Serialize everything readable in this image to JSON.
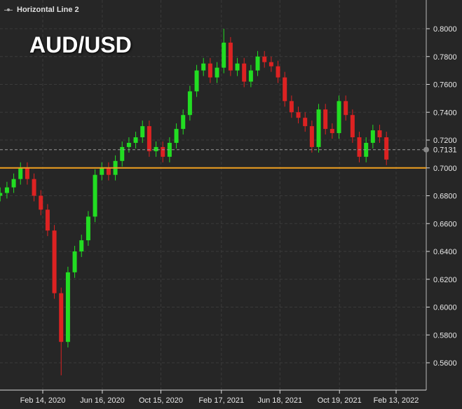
{
  "legend": {
    "label": "Horizontal Line 2",
    "icon": "horizontal-line-icon"
  },
  "chart_data": {
    "type": "candlestick",
    "title": "AUD/USD",
    "x": [
      "2019-11-18",
      "2019-12-02",
      "2019-12-16",
      "2019-12-30",
      "2020-01-13",
      "2020-01-27",
      "2020-02-10",
      "2020-02-24",
      "2020-03-09",
      "2020-03-23",
      "2020-04-06",
      "2020-04-20",
      "2020-05-04",
      "2020-05-18",
      "2020-06-01",
      "2020-06-15",
      "2020-06-29",
      "2020-07-13",
      "2020-07-27",
      "2020-08-10",
      "2020-08-24",
      "2020-09-07",
      "2020-09-21",
      "2020-10-05",
      "2020-10-19",
      "2020-11-02",
      "2020-11-16",
      "2020-11-30",
      "2020-12-14",
      "2020-12-28",
      "2021-01-11",
      "2021-01-25",
      "2021-02-08",
      "2021-02-22",
      "2021-03-08",
      "2021-03-22",
      "2021-04-05",
      "2021-04-19",
      "2021-05-03",
      "2021-05-17",
      "2021-05-31",
      "2021-06-14",
      "2021-06-28",
      "2021-07-12",
      "2021-07-26",
      "2021-08-09",
      "2021-08-23",
      "2021-09-06",
      "2021-09-20",
      "2021-10-04",
      "2021-10-18",
      "2021-11-01",
      "2021-11-15",
      "2021-11-29",
      "2021-12-13",
      "2021-12-27",
      "2022-01-10",
      "2022-01-24"
    ],
    "close": [
      0.682,
      0.686,
      0.692,
      0.7,
      0.692,
      0.68,
      0.67,
      0.655,
      0.61,
      0.575,
      0.625,
      0.64,
      0.648,
      0.665,
      0.695,
      0.7,
      0.695,
      0.705,
      0.715,
      0.718,
      0.722,
      0.73,
      0.712,
      0.715,
      0.708,
      0.718,
      0.728,
      0.738,
      0.755,
      0.77,
      0.775,
      0.765,
      0.772,
      0.79,
      0.77,
      0.775,
      0.762,
      0.77,
      0.78,
      0.776,
      0.773,
      0.765,
      0.748,
      0.74,
      0.736,
      0.73,
      0.715,
      0.742,
      0.728,
      0.725,
      0.748,
      0.738,
      0.722,
      0.708,
      0.718,
      0.727,
      0.722,
      0.706
    ],
    "period_low": 0.551,
    "period_high": 0.8,
    "x_ticks": [
      "Feb 14, 2020",
      "Jun 16, 2020",
      "Oct 15, 2020",
      "Feb 17, 2021",
      "Jun 18, 2021",
      "Oct 19, 2021",
      "Feb 13, 2022"
    ],
    "x_tick_dates": [
      "2020-02-14",
      "2020-06-16",
      "2020-10-15",
      "2021-02-17",
      "2021-06-18",
      "2021-10-19",
      "2022-02-13"
    ],
    "y_ticks": [
      "0.5600",
      "0.5800",
      "0.6000",
      "0.6200",
      "0.6400",
      "0.6600",
      "0.6800",
      "0.7000",
      "0.7200",
      "0.7400",
      "0.7600",
      "0.7800",
      "0.8000"
    ],
    "ylim": [
      0.544,
      0.82
    ],
    "grid": true,
    "axis_position": "right",
    "horizontal_line": {
      "value": 0.7,
      "color": "#f0a020"
    },
    "current_price": {
      "value": 0.7131,
      "label": "0.7131"
    },
    "colors": {
      "up": "#22dd22",
      "down": "#dd2222",
      "background": "#262626"
    }
  }
}
